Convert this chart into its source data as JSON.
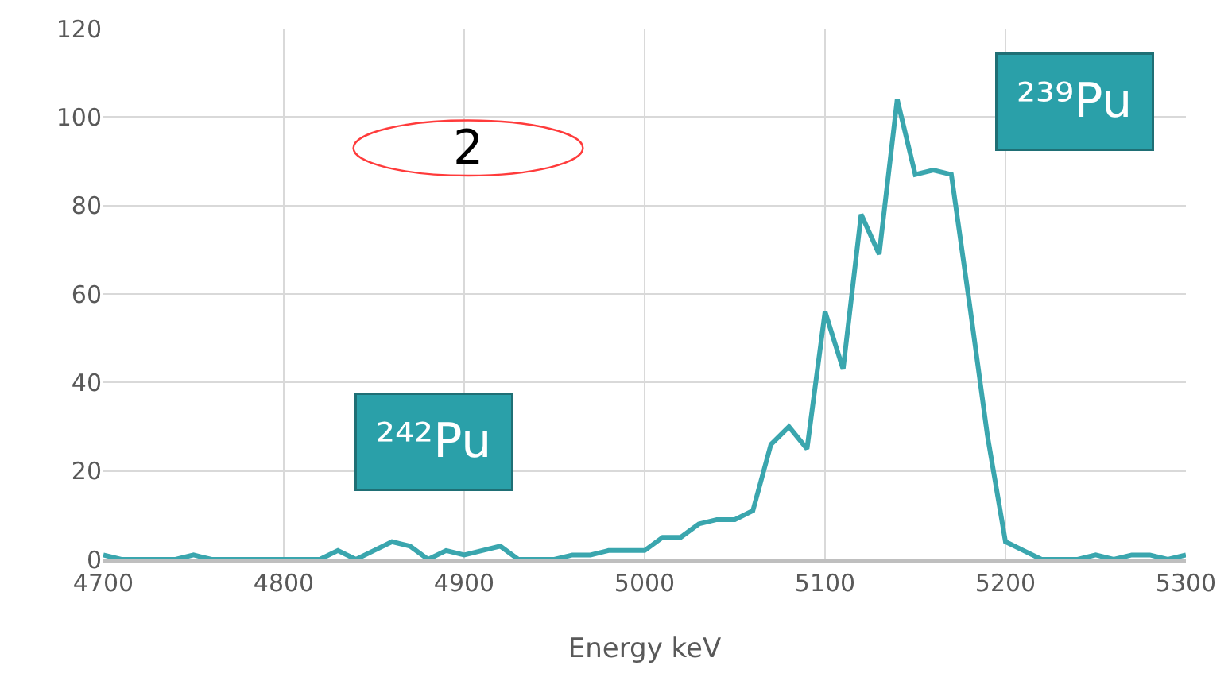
{
  "chart_data": {
    "type": "line",
    "xlabel": "Energy keV",
    "x": [
      4700,
      4710,
      4720,
      4730,
      4740,
      4750,
      4760,
      4770,
      4780,
      4790,
      4800,
      4810,
      4820,
      4830,
      4840,
      4850,
      4860,
      4870,
      4880,
      4890,
      4900,
      4910,
      4920,
      4930,
      4940,
      4950,
      4960,
      4970,
      4980,
      4990,
      5000,
      5010,
      5020,
      5030,
      5040,
      5050,
      5060,
      5070,
      5080,
      5090,
      5100,
      5110,
      5120,
      5130,
      5140,
      5150,
      5160,
      5170,
      5180,
      5190,
      5200,
      5210,
      5220,
      5230,
      5240,
      5250,
      5260,
      5270,
      5280,
      5290,
      5300
    ],
    "series": [
      {
        "color": "#3aa6ae",
        "values": [
          1,
          0,
          0,
          0,
          0,
          1,
          0,
          0,
          0,
          0,
          0,
          0,
          0,
          2,
          0,
          2,
          4,
          3,
          0,
          2,
          1,
          2,
          3,
          0,
          0,
          0,
          1,
          1,
          2,
          2,
          2,
          5,
          5,
          8,
          9,
          9,
          11,
          26,
          30,
          25,
          56,
          43,
          78,
          69,
          104,
          87,
          88,
          87,
          58,
          28,
          4,
          2,
          0,
          0,
          0,
          1,
          0,
          1,
          1,
          0,
          1
        ]
      }
    ],
    "xlim": [
      4700,
      5300
    ],
    "xticks": [
      4700,
      4800,
      4900,
      5000,
      5100,
      5200,
      5300
    ],
    "ylim": [
      0,
      120
    ],
    "yticks": [
      0,
      20,
      40,
      60,
      80,
      100,
      120
    ],
    "grid": true,
    "marker": "none",
    "line_style": "solid",
    "annotations": [
      "2",
      "²⁴²Pu",
      "²³⁹Pu"
    ]
  }
}
